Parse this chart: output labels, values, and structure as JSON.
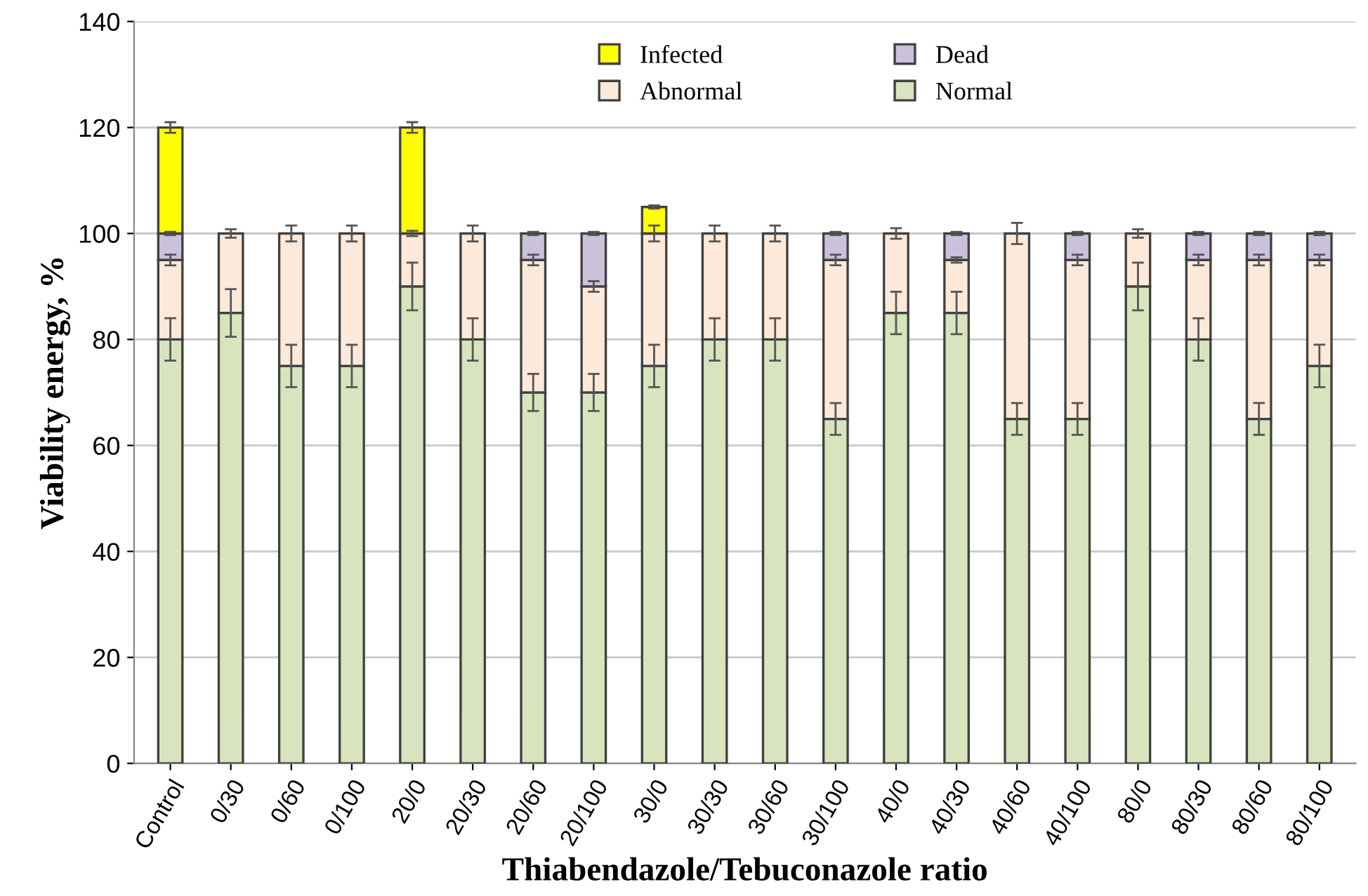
{
  "chart_data": {
    "type": "bar",
    "stacked": true,
    "xlabel": "Thiabendazole/Tebuconazole ratio",
    "ylabel": "Viability energy, %",
    "categories": [
      "Control",
      "0/30",
      "0/60",
      "0/100",
      "20/0",
      "20/30",
      "20/60",
      "20/100",
      "30/0",
      "30/30",
      "30/60",
      "30/100",
      "40/0",
      "40/30",
      "40/60",
      "40/100",
      "80/0",
      "80/30",
      "80/60",
      "80/100"
    ],
    "series": [
      {
        "name": "Normal",
        "color": "#d7e4bd",
        "values": [
          80,
          85,
          75,
          75,
          90,
          80,
          70,
          70,
          75,
          80,
          80,
          65,
          85,
          85,
          65,
          65,
          90,
          80,
          65,
          75
        ],
        "errors": [
          4,
          4.5,
          4,
          4,
          4.5,
          4,
          3.5,
          3.5,
          4,
          4,
          4,
          3,
          4,
          4,
          3,
          3,
          4.5,
          4,
          3,
          4
        ]
      },
      {
        "name": "Abnormal",
        "color": "#fde9d9",
        "values": [
          15,
          15,
          25,
          25,
          10,
          20,
          25,
          20,
          25,
          20,
          20,
          30,
          15,
          10,
          35,
          30,
          10,
          15,
          30,
          20
        ],
        "errors": [
          1,
          0.8,
          1.5,
          1.5,
          0.5,
          1.5,
          1,
          1,
          1.5,
          1.5,
          1.5,
          1,
          1,
          0.5,
          2,
          1,
          0.8,
          1,
          1,
          1
        ]
      },
      {
        "name": "Dead",
        "color": "#ccc1da",
        "values": [
          5,
          null,
          null,
          null,
          null,
          null,
          5,
          10,
          null,
          null,
          null,
          5,
          null,
          5,
          null,
          5,
          null,
          5,
          5,
          5
        ],
        "errors": [
          0.3,
          null,
          null,
          null,
          null,
          null,
          0.3,
          0.3,
          null,
          null,
          null,
          0.3,
          null,
          0.3,
          null,
          0.3,
          null,
          0.3,
          0.3,
          0.3
        ]
      },
      {
        "name": "Infected",
        "color": "#ffff00",
        "values": [
          20,
          null,
          null,
          null,
          20,
          null,
          null,
          null,
          5,
          null,
          null,
          null,
          null,
          null,
          null,
          null,
          null,
          null,
          null,
          null
        ],
        "errors": [
          1,
          null,
          null,
          null,
          1,
          null,
          null,
          null,
          0.3,
          null,
          null,
          null,
          null,
          null,
          null,
          null,
          null,
          null,
          null,
          null
        ]
      }
    ],
    "ylim": [
      0,
      140
    ],
    "yticks": [
      0,
      20,
      40,
      60,
      80,
      100,
      120,
      140
    ],
    "grid": "y",
    "legend": "top"
  }
}
